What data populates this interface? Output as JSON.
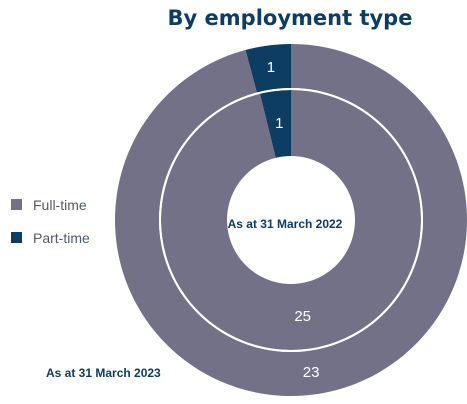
{
  "colors": {
    "full_time": "#737188",
    "part_time": "#0e3d63",
    "title": "#0e3d63",
    "legend_text": "#4f5b6a"
  },
  "chart_data": {
    "type": "pie",
    "title": "By employment type",
    "legend": [
      {
        "label": "Full-time",
        "color": "#737188"
      },
      {
        "label": "Part-time",
        "color": "#0e3d63"
      }
    ],
    "legend_placement": "left",
    "rings": [
      {
        "name": "As at 31 March 2023",
        "position": "outer",
        "slices": [
          {
            "category": "Full-time",
            "value": 23
          },
          {
            "category": "Part-time",
            "value": 1
          }
        ]
      },
      {
        "name": "As at 31 March 2022",
        "position": "inner",
        "slices": [
          {
            "category": "Full-time",
            "value": 25
          },
          {
            "category": "Part-time",
            "value": 1
          }
        ]
      }
    ]
  }
}
